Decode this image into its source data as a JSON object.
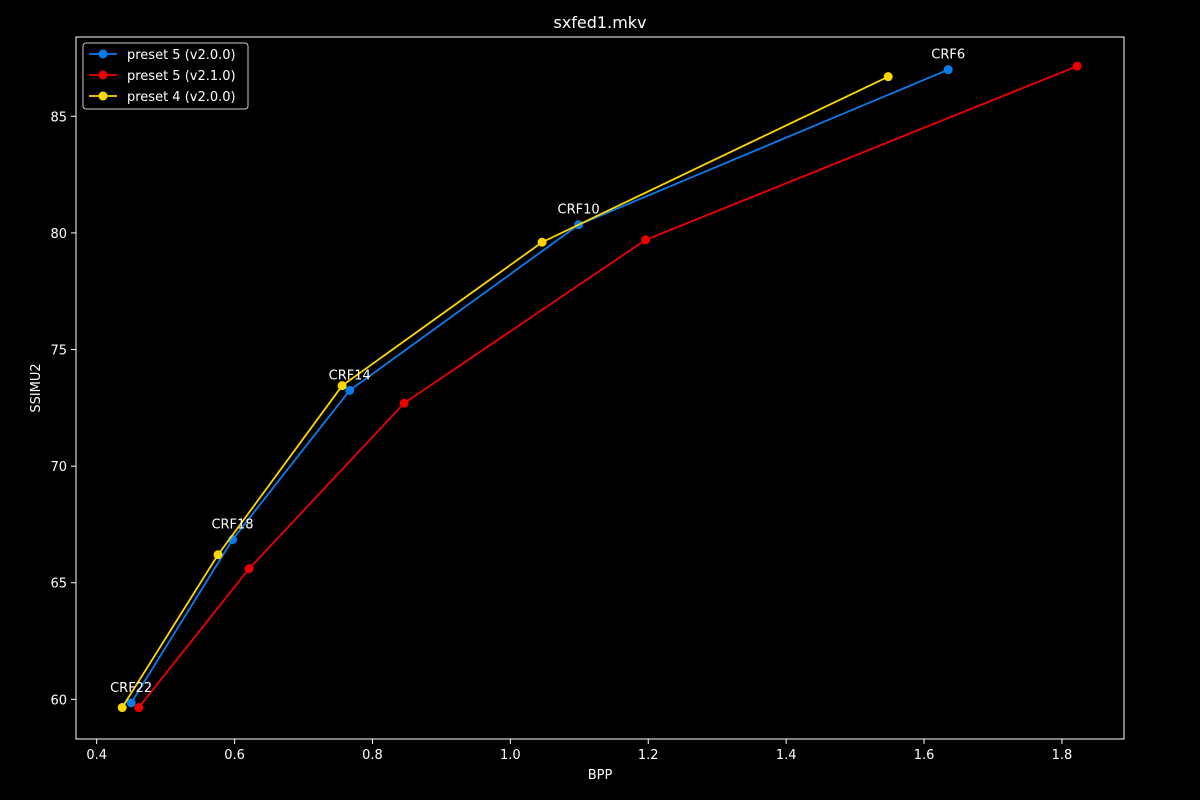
{
  "chart_data": {
    "type": "line",
    "title": "sxfed1.mkv",
    "xlabel": "BPP",
    "ylabel": "SSIMU2",
    "xlim": [
      0.37,
      1.89
    ],
    "ylim": [
      58.3,
      88.4
    ],
    "xticks": [
      0.4,
      0.6,
      0.8,
      1.0,
      1.2,
      1.4,
      1.6,
      1.8
    ],
    "xtick_labels": [
      "0.4",
      "0.6",
      "0.8",
      "1.0",
      "1.2",
      "1.4",
      "1.6",
      "1.8"
    ],
    "yticks": [
      60,
      65,
      70,
      75,
      80,
      85
    ],
    "ytick_labels": [
      "60",
      "65",
      "70",
      "75",
      "80",
      "85"
    ],
    "grid": false,
    "legend_position": "top-left",
    "series": [
      {
        "name": "preset 5 (v2.0.0)",
        "color": "#0a7bec",
        "x": [
          0.45,
          0.597,
          0.767,
          1.099,
          1.635
        ],
        "y": [
          59.85,
          66.85,
          73.25,
          80.35,
          87.0
        ]
      },
      {
        "name": "preset 5 (v2.1.0)",
        "color": "#ee0000",
        "x": [
          0.461,
          0.621,
          0.846,
          1.196,
          1.822
        ],
        "y": [
          59.65,
          65.6,
          72.7,
          79.7,
          87.15
        ]
      },
      {
        "name": "preset 4 (v2.0.0)",
        "color": "#ffd700",
        "x": [
          0.437,
          0.576,
          0.756,
          1.046,
          1.548
        ],
        "y": [
          59.65,
          66.2,
          73.45,
          79.6,
          86.7
        ]
      }
    ],
    "annotations": [
      {
        "text": "CRF22",
        "x": 0.45,
        "y": 59.85
      },
      {
        "text": "CRF18",
        "x": 0.597,
        "y": 66.85
      },
      {
        "text": "CRF14",
        "x": 0.767,
        "y": 73.25
      },
      {
        "text": "CRF10",
        "x": 1.099,
        "y": 80.35
      },
      {
        "text": "CRF6",
        "x": 1.635,
        "y": 87.0
      }
    ]
  }
}
